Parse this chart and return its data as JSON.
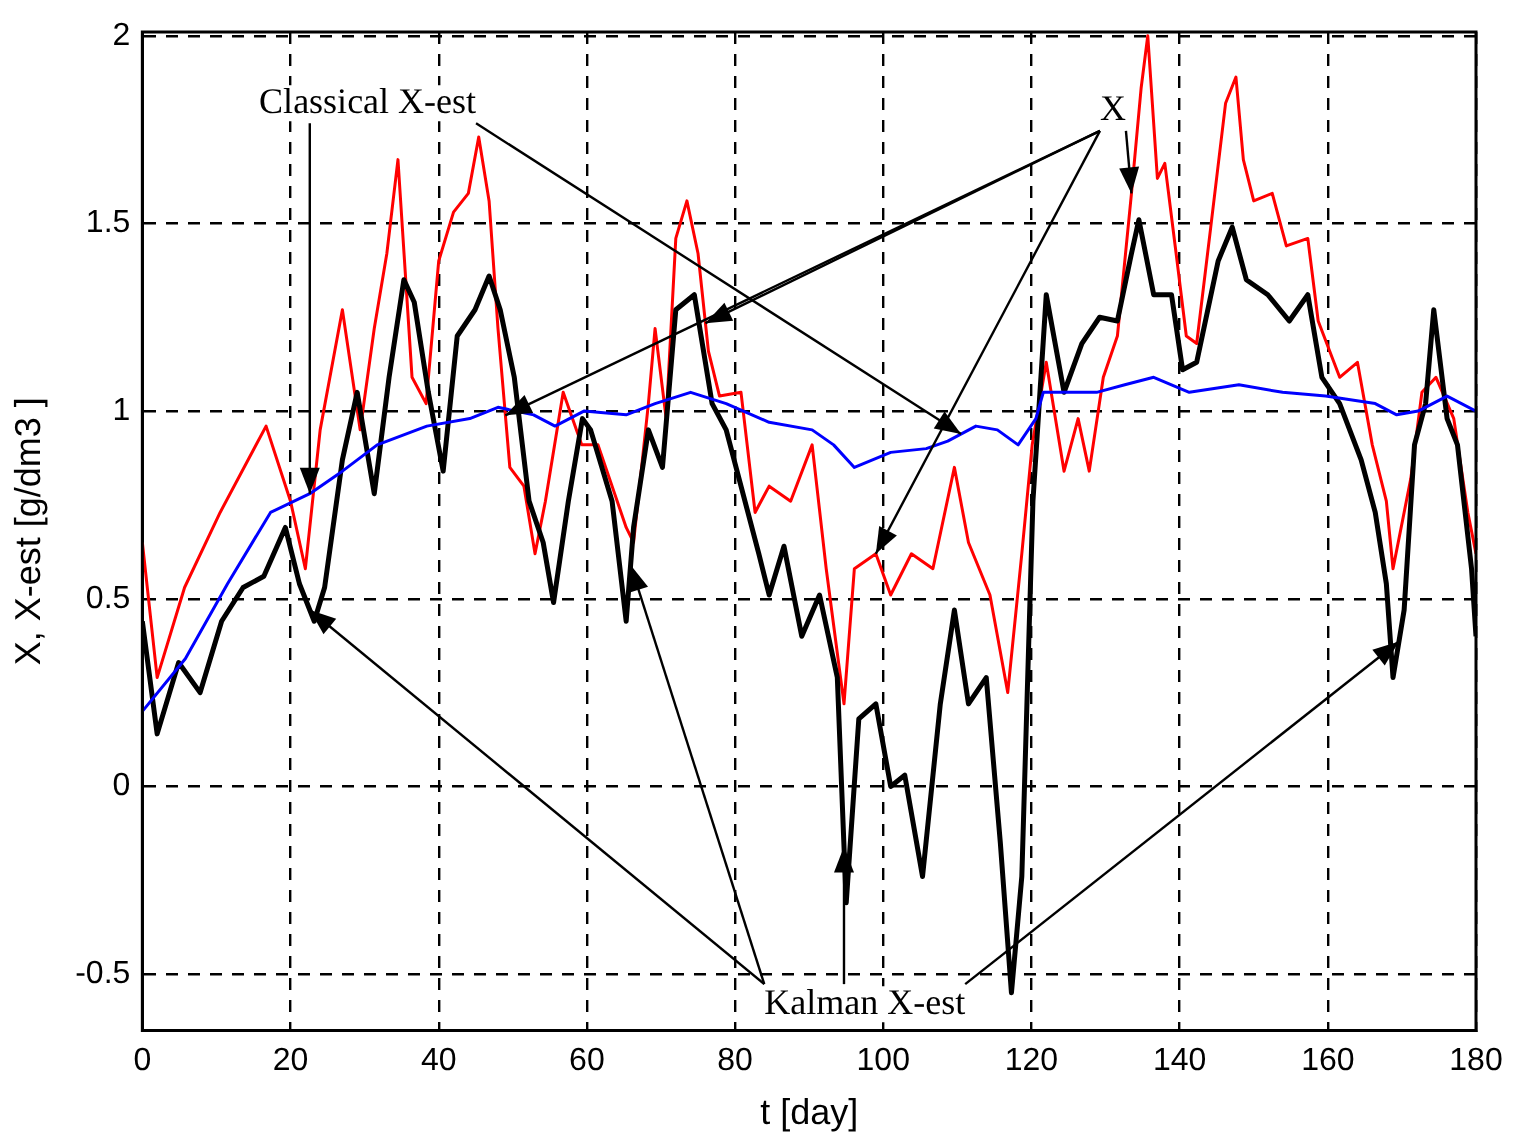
{
  "chart_data": {
    "type": "line",
    "xlabel": "t [day]",
    "ylabel": "X, X-est [g/dm3 ]",
    "xlim": [
      0,
      180
    ],
    "ylim": [
      -0.65,
      2.01
    ],
    "xticks": [
      0,
      20,
      40,
      60,
      80,
      100,
      120,
      140,
      160,
      180
    ],
    "yticks": [
      -0.5,
      0,
      0.5,
      1,
      1.5,
      2
    ],
    "grid": true,
    "legend": false,
    "marker": "none",
    "line_style": "solid",
    "series": [
      {
        "name": "X",
        "color": "#ff0000",
        "x": [
          0,
          2,
          5.7,
          10.5,
          16.7,
          20,
          22,
          24,
          27,
          29.4,
          31.3,
          33,
          34.5,
          36.4,
          38.3,
          40,
          42,
          44,
          45.4,
          46.8,
          48,
          49.6,
          51.5,
          53,
          54.4,
          56.8,
          59.3,
          61.5,
          65.3,
          66.3,
          68.3,
          69.2,
          70.7,
          72,
          73.5,
          75,
          76.4,
          77.9,
          80.8,
          82.7,
          84.6,
          87.5,
          90.4,
          92.3,
          94.7,
          96.1,
          99,
          101,
          103.8,
          106.7,
          109.6,
          111.5,
          114.4,
          116.8,
          118.7,
          120.1,
          122,
          124.4,
          126.3,
          127.8,
          129.7,
          131.6,
          133.5,
          134.8,
          135.7,
          137,
          138,
          139.4,
          140.9,
          142.3,
          144.2,
          146.2,
          147.6,
          148.6,
          150,
          152.5,
          154.4,
          157.3,
          158.7,
          161.6,
          164,
          166,
          167.9,
          168.8,
          171.2,
          172.7,
          174.6,
          177,
          178.9,
          180
        ],
        "values": [
          0.65,
          0.29,
          0.53,
          0.73,
          0.96,
          0.76,
          0.58,
          0.95,
          1.27,
          0.95,
          1.22,
          1.42,
          1.67,
          1.09,
          1.02,
          1.4,
          1.53,
          1.58,
          1.73,
          1.56,
          1.22,
          0.85,
          0.8,
          0.62,
          0.76,
          1.05,
          0.91,
          0.91,
          0.69,
          0.65,
          1.02,
          1.22,
          0.98,
          1.46,
          1.56,
          1.42,
          1.16,
          1.04,
          1.05,
          0.73,
          0.8,
          0.76,
          0.91,
          0.58,
          0.22,
          0.58,
          0.62,
          0.51,
          0.62,
          0.58,
          0.85,
          0.65,
          0.51,
          0.25,
          0.62,
          0.91,
          1.13,
          0.84,
          0.98,
          0.84,
          1.09,
          1.2,
          1.58,
          1.86,
          2.0,
          1.62,
          1.66,
          1.44,
          1.2,
          1.18,
          1.49,
          1.82,
          1.89,
          1.67,
          1.56,
          1.58,
          1.44,
          1.46,
          1.24,
          1.09,
          1.13,
          0.91,
          0.76,
          0.58,
          0.82,
          1.05,
          1.09,
          0.98,
          0.73,
          0.62
        ]
      },
      {
        "name": "Kalman X-est",
        "color": "#000000",
        "x": [
          0,
          2,
          4.9,
          7.8,
          10.7,
          13.6,
          16.4,
          19.3,
          21.2,
          23.2,
          24.6,
          27,
          29,
          31.3,
          33.3,
          35.3,
          36.7,
          38.6,
          40.6,
          42.5,
          44.9,
          46.8,
          48.3,
          50.2,
          52.2,
          54.1,
          55.5,
          57.5,
          59.4,
          60.5,
          63.4,
          65.3,
          66.3,
          68.3,
          70.2,
          72,
          74.5,
          76.9,
          78.8,
          80.8,
          83.2,
          84.6,
          86.6,
          89,
          91.4,
          93.8,
          95,
          96.7,
          99,
          101,
          102.9,
          105.3,
          107.7,
          109.6,
          111.5,
          113.9,
          115.8,
          117.3,
          118.7,
          120.2,
          122,
          124.4,
          126.8,
          129.2,
          131.6,
          133.5,
          134.5,
          136.5,
          138.9,
          140.4,
          142.3,
          145.2,
          147.1,
          149,
          151.9,
          154.8,
          157.3,
          159.2,
          161.6,
          164.5,
          166.4,
          167.9,
          168.8,
          170.3,
          171.7,
          173.2,
          174.3,
          176.1,
          177.5,
          179.4,
          180
        ],
        "values": [
          0.44,
          0.14,
          0.33,
          0.25,
          0.44,
          0.53,
          0.56,
          0.69,
          0.54,
          0.44,
          0.53,
          0.87,
          1.05,
          0.78,
          1.09,
          1.35,
          1.29,
          1.05,
          0.84,
          1.2,
          1.27,
          1.36,
          1.27,
          1.09,
          0.76,
          0.65,
          0.49,
          0.76,
          0.98,
          0.95,
          0.76,
          0.44,
          0.69,
          0.95,
          0.85,
          1.27,
          1.31,
          1.02,
          0.95,
          0.8,
          0.62,
          0.51,
          0.64,
          0.4,
          0.51,
          0.29,
          -0.31,
          0.18,
          0.22,
          0,
          0.03,
          -0.24,
          0.22,
          0.47,
          0.22,
          0.29,
          -0.15,
          -0.55,
          -0.24,
          0.76,
          1.31,
          1.05,
          1.18,
          1.25,
          1.24,
          1.42,
          1.51,
          1.31,
          1.31,
          1.11,
          1.13,
          1.4,
          1.49,
          1.35,
          1.31,
          1.24,
          1.31,
          1.09,
          1.02,
          0.87,
          0.73,
          0.54,
          0.29,
          0.47,
          0.91,
          1.02,
          1.27,
          0.98,
          0.91,
          0.58,
          0.4
        ]
      },
      {
        "name": "Classical X-est",
        "color": "#0000ff",
        "x": [
          0,
          5.8,
          11.5,
          17.3,
          22.6,
          27,
          31.7,
          38.4,
          44.2,
          48,
          52.8,
          55.7,
          59.6,
          65.3,
          69.2,
          74,
          78.8,
          84.6,
          90.4,
          93.3,
          96.1,
          101,
          105.8,
          108.7,
          112.5,
          115.4,
          118.2,
          120.6,
          121.6,
          128.8,
          132.6,
          136.5,
          141.3,
          148,
          153.9,
          159.7,
          166.4,
          169.3,
          172.2,
          176.1,
          180
        ],
        "values": [
          0.2,
          0.34,
          0.54,
          0.73,
          0.78,
          0.84,
          0.91,
          0.96,
          0.98,
          1.01,
          0.99,
          0.96,
          1.0,
          0.99,
          1.02,
          1.05,
          1.02,
          0.97,
          0.95,
          0.91,
          0.85,
          0.89,
          0.9,
          0.92,
          0.96,
          0.95,
          0.91,
          0.98,
          1.05,
          1.05,
          1.07,
          1.09,
          1.05,
          1.07,
          1.05,
          1.04,
          1.02,
          0.99,
          1.0,
          1.04,
          1.0
        ]
      }
    ]
  }
}
